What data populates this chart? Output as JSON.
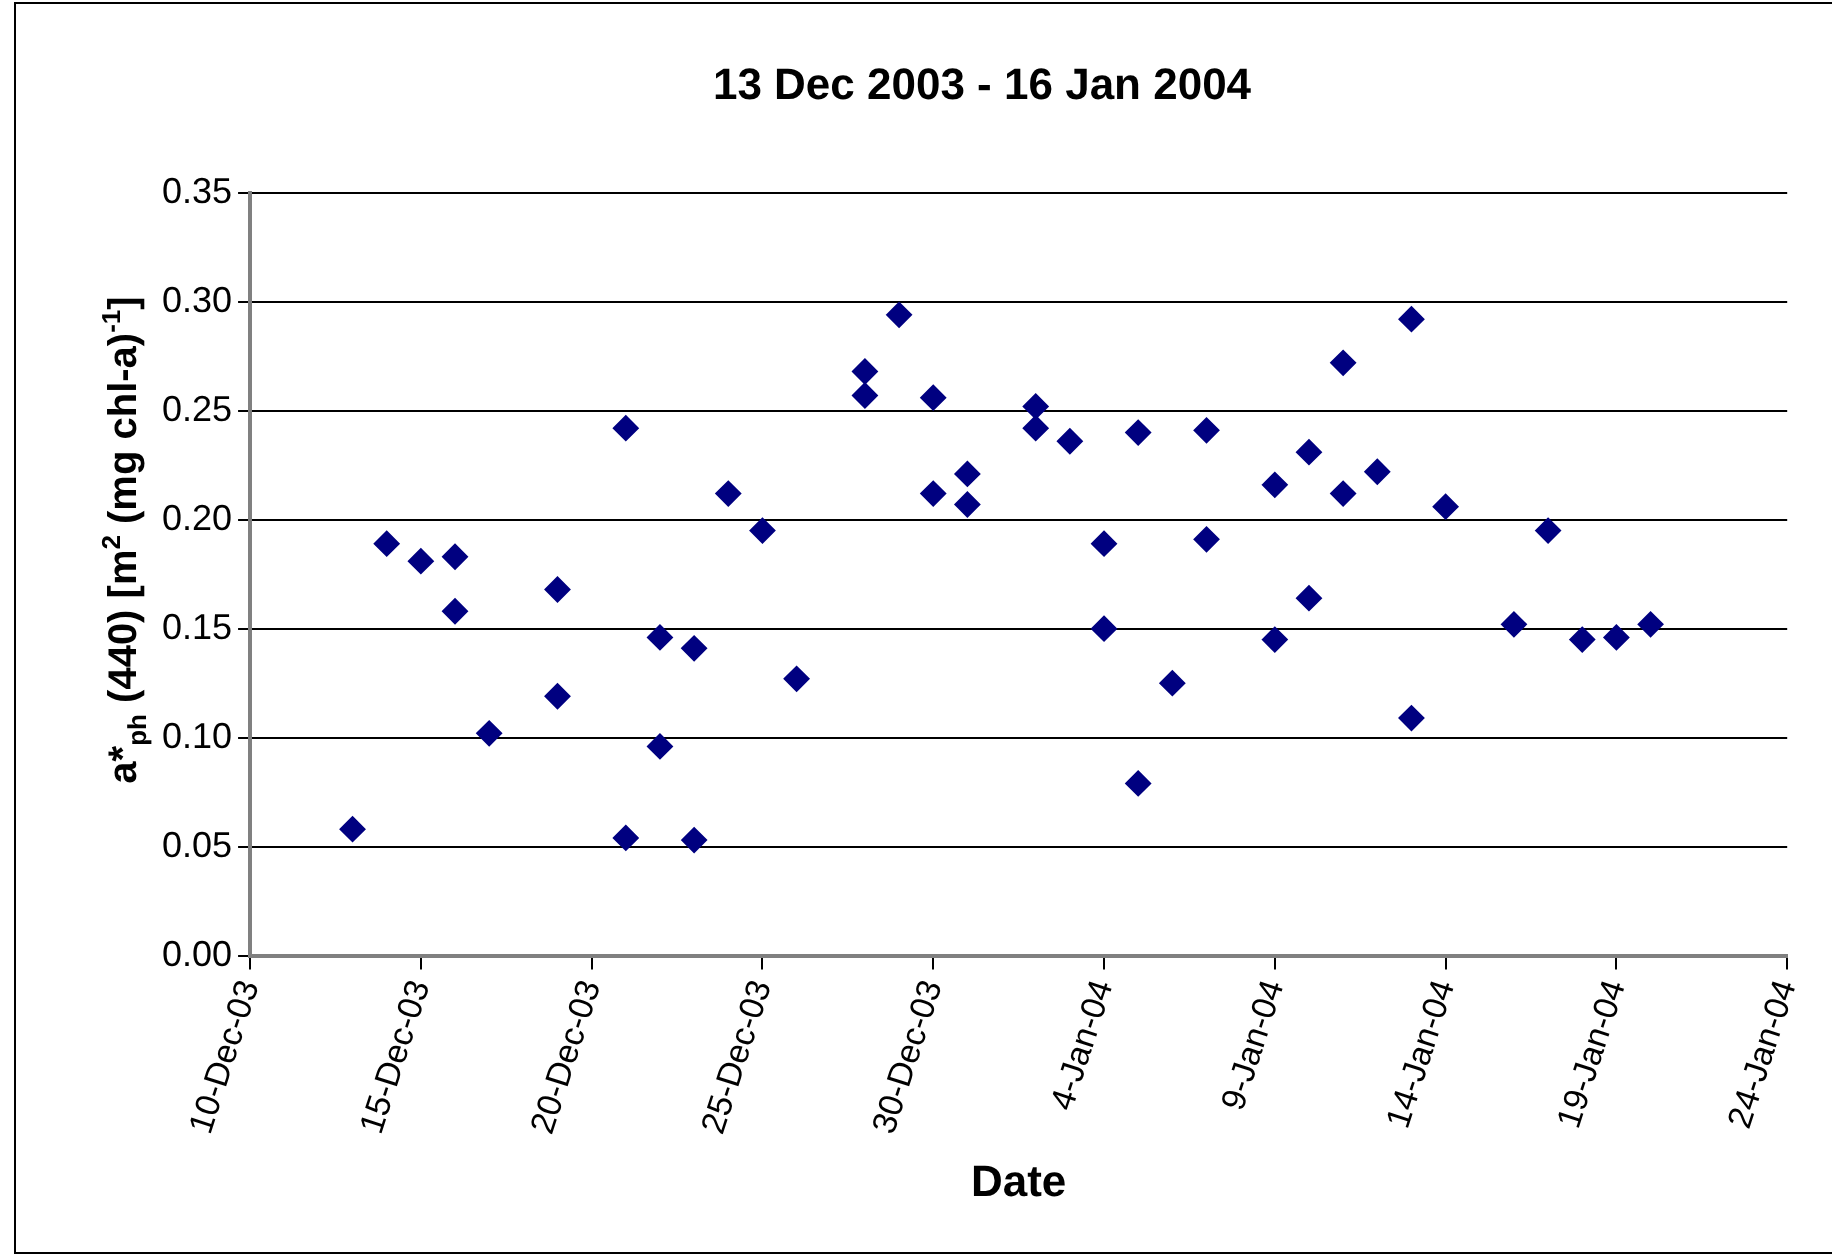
{
  "chart_data": {
    "type": "scatter",
    "title": "13 Dec 2003 - 16 Jan 2004",
    "xlabel": "Date",
    "ylabel": "a*$_{ph}$ (440) [m$^{2}$ (mg chl-a)$^{-1}$]",
    "x": [
      "2003-12-13",
      "2003-12-14",
      "2003-12-15",
      "2003-12-16",
      "2003-12-16",
      "2003-12-17",
      "2003-12-19",
      "2003-12-19",
      "2003-12-21",
      "2003-12-21",
      "2003-12-22",
      "2003-12-22",
      "2003-12-23",
      "2003-12-23",
      "2003-12-24",
      "2003-12-25",
      "2003-12-26",
      "2003-12-28",
      "2003-12-28",
      "2003-12-29",
      "2003-12-30",
      "2003-12-30",
      "2003-12-31",
      "2003-12-31",
      "2004-01-02",
      "2004-01-02",
      "2004-01-03",
      "2004-01-04",
      "2004-01-04",
      "2004-01-05",
      "2004-01-05",
      "2004-01-06",
      "2004-01-07",
      "2004-01-07",
      "2004-01-09",
      "2004-01-09",
      "2004-01-10",
      "2004-01-10",
      "2004-01-11",
      "2004-01-11",
      "2004-01-12",
      "2004-01-13",
      "2004-01-13",
      "2004-01-14",
      "2004-01-16",
      "2004-01-17",
      "2004-01-18",
      "2004-01-19",
      "2004-01-20"
    ],
    "series": [
      {
        "color": "#000080",
        "values": [
          0.058,
          0.189,
          0.181,
          0.183,
          0.158,
          0.102,
          0.168,
          0.119,
          0.242,
          0.054,
          0.146,
          0.096,
          0.141,
          0.053,
          0.212,
          0.195,
          0.127,
          0.268,
          0.257,
          0.294,
          0.256,
          0.212,
          0.221,
          0.207,
          0.252,
          0.242,
          0.236,
          0.189,
          0.15,
          0.24,
          0.079,
          0.125,
          0.241,
          0.191,
          0.216,
          0.145,
          0.231,
          0.164,
          0.272,
          0.212,
          0.222,
          0.292,
          0.109,
          0.206,
          0.152,
          0.195,
          0.145,
          0.146,
          0.152
        ]
      }
    ],
    "xlim": [
      "2003-12-10",
      "2004-01-24"
    ],
    "xticks": [
      {
        "value": "2003-12-10",
        "label": "10-Dec-03"
      },
      {
        "value": "2003-12-15",
        "label": "15-Dec-03"
      },
      {
        "value": "2003-12-20",
        "label": "20-Dec-03"
      },
      {
        "value": "2003-12-25",
        "label": "25-Dec-03"
      },
      {
        "value": "2003-12-30",
        "label": "30-Dec-03"
      },
      {
        "value": "2004-01-04",
        "label": "4-Jan-04"
      },
      {
        "value": "2004-01-09",
        "label": "9-Jan-04"
      },
      {
        "value": "2004-01-14",
        "label": "14-Jan-04"
      },
      {
        "value": "2004-01-19",
        "label": "19-Jan-04"
      },
      {
        "value": "2004-01-24",
        "label": "24-Jan-04"
      }
    ],
    "ylim": [
      0,
      0.35
    ],
    "yticks": [
      {
        "value": 0,
        "label": "0.00"
      },
      0.05,
      {
        "value": 0.1,
        "label": "0.10"
      },
      0.15,
      {
        "value": 0.2,
        "label": "0.20"
      },
      0.25,
      {
        "value": 0.3,
        "label": "0.30"
      },
      0.35
    ],
    "grid": "y",
    "legend": false,
    "marker": "diamond"
  }
}
